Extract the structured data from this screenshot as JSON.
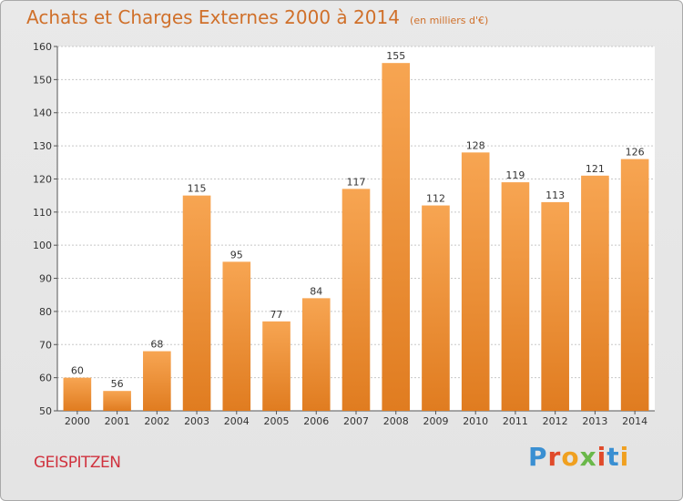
{
  "header": {
    "title": "Achats et Charges Externes 2000 à 2014",
    "unit": "(en milliers d'€)"
  },
  "footer": {
    "commune": "GEISPITZEN",
    "logo_text": "Proxiti"
  },
  "colors": {
    "title": "#d0702a",
    "commune": "#d0323e",
    "bar_top": "#f7a552",
    "bar_bottom": "#e07c20",
    "logo": [
      "#3a8fd2",
      "#e04a2a",
      "#f0a020",
      "#6ab84a",
      "#e04a2a",
      "#3a8fd2",
      "#f0a020"
    ]
  },
  "chart_data": {
    "type": "bar",
    "categories": [
      "2000",
      "2001",
      "2002",
      "2003",
      "2004",
      "2005",
      "2006",
      "2007",
      "2008",
      "2009",
      "2010",
      "2011",
      "2012",
      "2013",
      "2014"
    ],
    "values": [
      60,
      56,
      68,
      115,
      95,
      77,
      84,
      117,
      155,
      112,
      128,
      119,
      113,
      121,
      126
    ],
    "ylim": [
      50,
      160
    ],
    "yticks": [
      50,
      60,
      70,
      80,
      90,
      100,
      110,
      120,
      130,
      140,
      150,
      160
    ],
    "grid": true,
    "xlabel": "",
    "ylabel": ""
  }
}
